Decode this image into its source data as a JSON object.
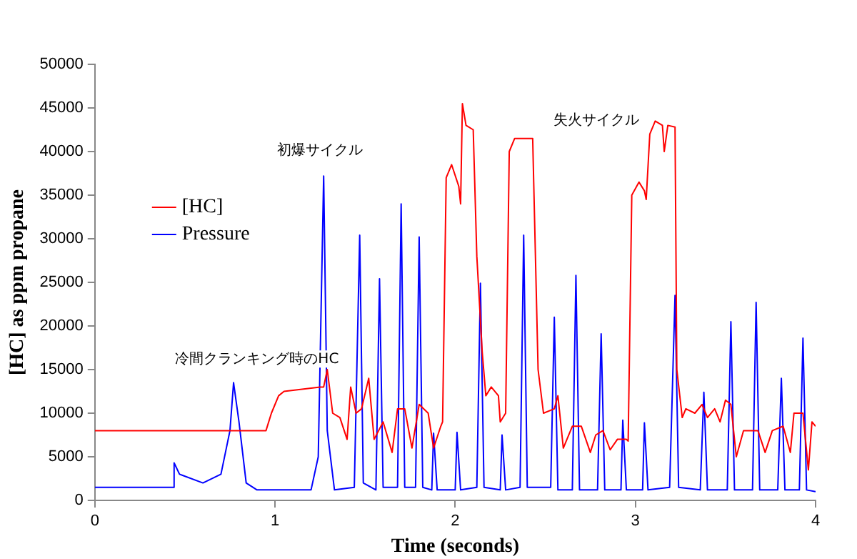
{
  "chart_data": {
    "type": "line",
    "xlabel": "Time (seconds)",
    "ylabel": "[HC] as ppm propane",
    "xlim": [
      0,
      4
    ],
    "xticks": [
      0,
      1,
      2,
      3,
      4
    ],
    "ylim": [
      0,
      50000
    ],
    "yticks": [
      0,
      5000,
      10000,
      15000,
      20000,
      25000,
      30000,
      35000,
      40000,
      45000,
      50000
    ],
    "grid": false,
    "legend": "left",
    "marker": "none",
    "line_style": "solid",
    "annotations": [
      "冷間クランキング時のHC",
      "初爆サイクル",
      "失火サイクル"
    ],
    "series": [
      {
        "name": "[HC]",
        "color": "#ff0000",
        "x": [
          0,
          0.95,
          0.98,
          1.02,
          1.05,
          1.25,
          1.27,
          1.29,
          1.32,
          1.36,
          1.4,
          1.42,
          1.45,
          1.48,
          1.52,
          1.55,
          1.6,
          1.65,
          1.68,
          1.72,
          1.76,
          1.8,
          1.85,
          1.88,
          1.92,
          1.93,
          1.95,
          1.98,
          2.02,
          2.03,
          2.04,
          2.06,
          2.1,
          2.12,
          2.15,
          2.17,
          2.2,
          2.24,
          2.25,
          2.28,
          2.3,
          2.33,
          2.43,
          2.46,
          2.49,
          2.55,
          2.57,
          2.6,
          2.65,
          2.7,
          2.75,
          2.78,
          2.82,
          2.86,
          2.9,
          2.95,
          2.96,
          2.98,
          3.02,
          3.05,
          3.06,
          3.08,
          3.11,
          3.15,
          3.16,
          3.18,
          3.22,
          3.23,
          3.26,
          3.28,
          3.33,
          3.37,
          3.4,
          3.44,
          3.47,
          3.5,
          3.53,
          3.56,
          3.6,
          3.68,
          3.72,
          3.76,
          3.82,
          3.86,
          3.88,
          3.93,
          3.96,
          3.98,
          4.0
        ],
        "values": [
          8000,
          8000,
          10000,
          12000,
          12500,
          13000,
          13000,
          15000,
          10000,
          9500,
          7000,
          13000,
          10000,
          10500,
          14000,
          7000,
          9000,
          5500,
          10500,
          10500,
          6000,
          11000,
          10000,
          6000,
          8500,
          9000,
          37000,
          38500,
          36000,
          34000,
          45500,
          43000,
          42500,
          28000,
          17000,
          12000,
          13000,
          12000,
          9000,
          10000,
          40000,
          41500,
          41500,
          15000,
          10000,
          10500,
          12000,
          6000,
          8500,
          8500,
          5500,
          7500,
          8000,
          5800,
          7000,
          7000,
          6800,
          35000,
          36500,
          35500,
          34500,
          42000,
          43500,
          43000,
          40000,
          43000,
          42800,
          15000,
          9500,
          10500,
          10000,
          11000,
          9500,
          10500,
          9000,
          11500,
          11000,
          5000,
          8000,
          8000,
          5500,
          8000,
          8500,
          5500,
          10000,
          10000,
          3500,
          9000,
          8500
        ]
      },
      {
        "name": "Pressure",
        "color": "#0000ff",
        "x": [
          0,
          0.44,
          0.44,
          0.47,
          0.6,
          0.7,
          0.75,
          0.77,
          0.8,
          0.84,
          0.9,
          1.2,
          1.24,
          1.27,
          1.29,
          1.33,
          1.44,
          1.47,
          1.49,
          1.56,
          1.58,
          1.6,
          1.68,
          1.7,
          1.72,
          1.78,
          1.8,
          1.82,
          1.87,
          1.88,
          1.9,
          2,
          2.01,
          2.03,
          2.12,
          2.14,
          2.16,
          2.25,
          2.26,
          2.28,
          2.36,
          2.38,
          2.4,
          2.53,
          2.55,
          2.57,
          2.65,
          2.67,
          2.69,
          2.79,
          2.81,
          2.83,
          2.92,
          2.93,
          2.95,
          3.04,
          3.05,
          3.07,
          3.19,
          3.22,
          3.24,
          3.36,
          3.38,
          3.4,
          3.51,
          3.53,
          3.55,
          3.65,
          3.67,
          3.69,
          3.79,
          3.81,
          3.83,
          3.91,
          3.93,
          3.95,
          4.0
        ],
        "values": [
          1500,
          1500,
          4300,
          3000,
          2000,
          3000,
          8000,
          13500,
          9000,
          2000,
          1200,
          1200,
          5000,
          37200,
          8000,
          1200,
          1500,
          30400,
          2000,
          1200,
          25400,
          1500,
          1500,
          34000,
          1500,
          1500,
          30200,
          1500,
          1200,
          7700,
          1200,
          1200,
          7800,
          1200,
          1500,
          24900,
          1500,
          1200,
          7500,
          1200,
          1500,
          30400,
          1500,
          1500,
          21000,
          1200,
          1200,
          25800,
          1200,
          1200,
          19100,
          1200,
          1200,
          9200,
          1200,
          1200,
          8900,
          1200,
          1500,
          23500,
          1500,
          1200,
          12400,
          1200,
          1200,
          20500,
          1200,
          1200,
          22700,
          1200,
          1200,
          14000,
          1200,
          1200,
          18600,
          1200,
          1000
        ]
      }
    ]
  }
}
